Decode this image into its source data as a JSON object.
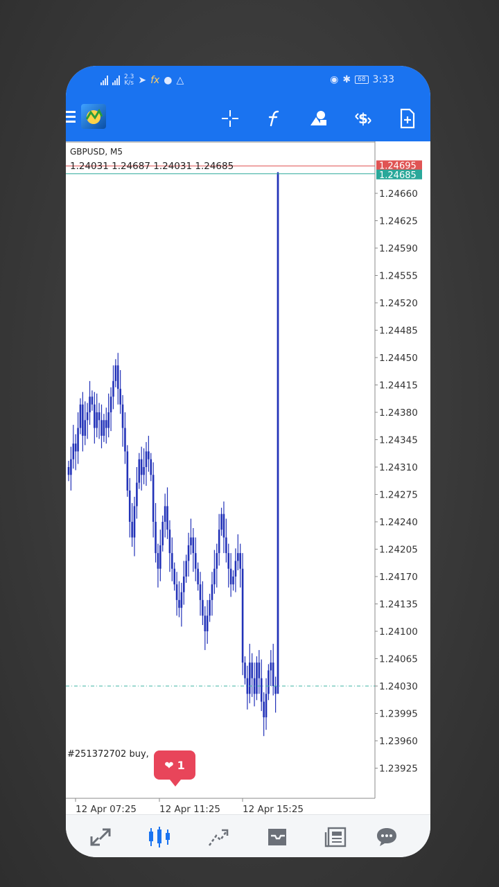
{
  "status_bar": {
    "net_speed_value": "2.3",
    "net_speed_unit": "K/s",
    "battery": "68",
    "time": "3:33",
    "icons": [
      "signal-icon",
      "signal-icon",
      "telegram-icon",
      "forex-app-icon",
      "car-icon",
      "warning-icon",
      "eye-icon",
      "bluetooth-icon",
      "battery-icon"
    ]
  },
  "toolbar": {
    "icons": [
      "menu-icon",
      "metatrader-logo-icon",
      "crosshair-icon",
      "indicators-f-icon",
      "objects-icon",
      "trade-dollar-icon",
      "new-chart-icon"
    ]
  },
  "chart": {
    "symbol": "GBPUSD, M5",
    "ohlc": "1.24031 1.24687 1.24031 1.24685",
    "ask_label": "1.24695",
    "bid_label": "1.24685",
    "order_label": "#251372702 buy,",
    "like_count": "1",
    "colors": {
      "candle": "#2232b8",
      "ask": "#e05454",
      "bid": "#2aa89a",
      "order_line": "#3bb3a3",
      "axis": "#888888"
    }
  },
  "chart_data": {
    "type": "bar",
    "symbol": "GBPUSD",
    "timeframe": "M5",
    "ylim": [
      1.239,
      1.247
    ],
    "y_ticks": [
      "1.24660",
      "1.24625",
      "1.24590",
      "1.24555",
      "1.24520",
      "1.24485",
      "1.24450",
      "1.24415",
      "1.24380",
      "1.24345",
      "1.24310",
      "1.24275",
      "1.24240",
      "1.24205",
      "1.24170",
      "1.24135",
      "1.24100",
      "1.24065",
      "1.24030",
      "1.23995",
      "1.23960",
      "1.23925"
    ],
    "x_ticks": [
      "12 Apr 07:25",
      "12 Apr 11:25",
      "12 Apr 15:25"
    ],
    "bid_price": 1.24685,
    "ask_price": 1.24695,
    "order_price": 1.2403,
    "grid": false,
    "closes": [
      1.243,
      1.2432,
      1.2434,
      1.2433,
      1.2436,
      1.2439,
      1.2435,
      1.2437,
      1.2438,
      1.244,
      1.2439,
      1.2436,
      1.2438,
      1.2437,
      1.2435,
      1.2437,
      1.2436,
      1.2438,
      1.244,
      1.2442,
      1.2444,
      1.2441,
      1.2439,
      1.2436,
      1.2433,
      1.2428,
      1.2424,
      1.2422,
      1.2426,
      1.2429,
      1.2432,
      1.243,
      1.2431,
      1.2433,
      1.2432,
      1.243,
      1.2424,
      1.242,
      1.2418,
      1.2421,
      1.2424,
      1.2426,
      1.2423,
      1.242,
      1.2418,
      1.2416,
      1.2414,
      1.2413,
      1.2415,
      1.2417,
      1.2419,
      1.2421,
      1.2422,
      1.242,
      1.2418,
      1.2416,
      1.2414,
      1.2412,
      1.241,
      1.2412,
      1.2414,
      1.2416,
      1.2418,
      1.242,
      1.2423,
      1.2425,
      1.2422,
      1.242,
      1.2418,
      1.2416,
      1.2417,
      1.2419,
      1.242,
      1.2418,
      1.2406,
      1.2404,
      1.2402,
      1.2406,
      1.2404,
      1.2402,
      1.2406,
      1.2404,
      1.2401,
      1.2399,
      1.2402,
      1.2405,
      1.2406,
      1.2403,
      1.2402,
      1.24685
    ]
  },
  "bottom_nav": {
    "items": [
      "quotes-icon",
      "chart-icon",
      "trade-icon",
      "history-icon",
      "news-icon",
      "chat-icon"
    ],
    "active": "chart-icon"
  }
}
